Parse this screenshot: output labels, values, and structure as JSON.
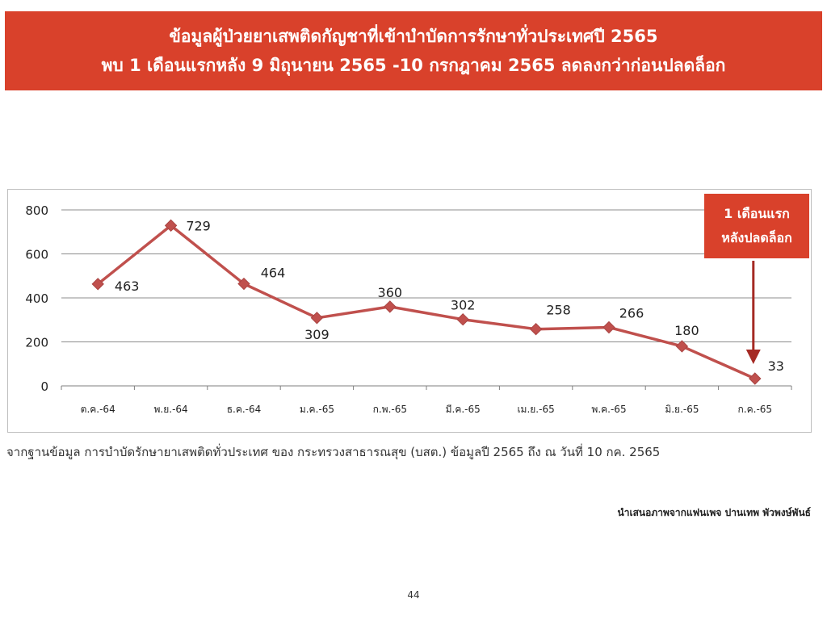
{
  "header": {
    "title_line1": "ข้อมูลผู้ป่วยยาเสพติดกัญชาที่เข้าบำบัดการรักษาทั่วประเทศปี 2565",
    "title_line2": "พบ 1 เดือนแรกหลัง 9 มิถุนายน 2565 -10 กรกฎาคม 2565 ลดลงกว่าก่อนปลดล็อก"
  },
  "callout": {
    "line1": "1 เดือนแรก",
    "line2": "หลังปลดล็อก"
  },
  "source_note": "จากฐานข้อมูล การบำบัดรักษายาเสพติดทั่วประเทศ ของ กระทรวงสาธารณสุข (บสต.) ข้อมูลปี 2565 ถึง ณ วันที่ 10 กค. 2565",
  "credit": "นำเสนอภาพจากแฟนเพจ ปานเทพ พัวพงษ์พันธ์",
  "page_number": "44",
  "colors": {
    "banner": "#d9412b",
    "line": "#c0504d",
    "arrow": "#a52a24"
  },
  "chart_data": {
    "type": "line",
    "categories": [
      "ต.ค.-64",
      "พ.ย.-64",
      "ธ.ค.-64",
      "ม.ค.-65",
      "ก.พ.-65",
      "มี.ค.-65",
      "เม.ย.-65",
      "พ.ค.-65",
      "มิ.ย.-65",
      "ก.ค.-65"
    ],
    "series": [
      {
        "values": [
          463,
          729,
          464,
          309,
          360,
          302,
          258,
          266,
          180,
          33
        ]
      }
    ],
    "data_labels": [
      "463",
      "729",
      "464",
      "309",
      "360",
      "302",
      "258",
      "266",
      "180",
      "33"
    ],
    "yticks": [
      "0",
      "200",
      "400",
      "600",
      "800"
    ],
    "ytick_values": [
      0,
      200,
      400,
      600,
      800
    ],
    "ylim": [
      0,
      800
    ],
    "grid": true,
    "marker": "diamond"
  }
}
